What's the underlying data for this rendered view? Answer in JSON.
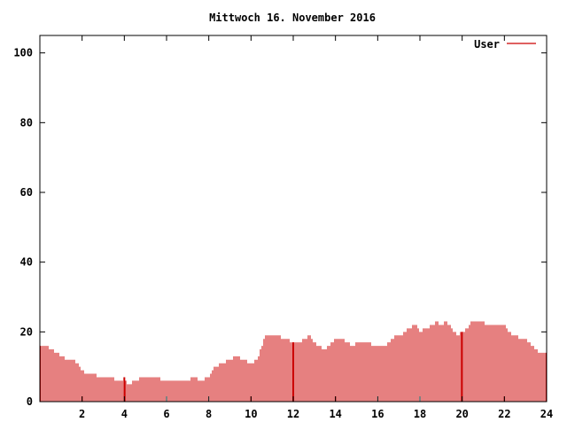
{
  "chart_data": {
    "type": "bar",
    "title": "Mittwoch 16. November 2016",
    "xlabel": "",
    "ylabel": "",
    "xlim": [
      0,
      24
    ],
    "ylim": [
      0,
      105
    ],
    "x_ticks": [
      2,
      4,
      6,
      8,
      10,
      12,
      14,
      16,
      18,
      20,
      22,
      24
    ],
    "y_ticks": [
      0,
      20,
      40,
      60,
      80,
      100
    ],
    "x_tick_labels": [
      "2",
      "4",
      "6",
      "8",
      "10",
      "12",
      "14",
      "16",
      "18",
      "20",
      "22",
      "24"
    ],
    "y_tick_labels": [
      "0",
      "20",
      "40",
      "60",
      "80",
      "100"
    ],
    "grid": false,
    "legend_position": "top-right",
    "series": [
      {
        "name": "User",
        "color": "#cc0000",
        "anchors": [
          [
            0.0,
            16
          ],
          [
            0.3,
            16
          ],
          [
            0.5,
            15
          ],
          [
            0.8,
            14
          ],
          [
            1.0,
            13
          ],
          [
            1.3,
            12
          ],
          [
            1.6,
            12
          ],
          [
            1.8,
            11
          ],
          [
            2.0,
            9
          ],
          [
            2.2,
            8
          ],
          [
            2.5,
            8
          ],
          [
            2.8,
            7
          ],
          [
            3.2,
            7
          ],
          [
            3.5,
            7
          ],
          [
            3.6,
            6
          ],
          [
            3.9,
            6
          ],
          [
            4.0,
            7
          ],
          [
            4.2,
            5
          ],
          [
            4.6,
            6
          ],
          [
            4.8,
            7
          ],
          [
            5.2,
            7
          ],
          [
            5.6,
            7
          ],
          [
            5.8,
            6
          ],
          [
            6.0,
            6
          ],
          [
            6.5,
            6
          ],
          [
            7.0,
            6
          ],
          [
            7.3,
            7
          ],
          [
            7.6,
            6
          ],
          [
            8.0,
            7
          ],
          [
            8.3,
            10
          ],
          [
            8.6,
            11
          ],
          [
            9.0,
            12
          ],
          [
            9.3,
            13
          ],
          [
            9.6,
            12
          ],
          [
            10.0,
            11
          ],
          [
            10.3,
            12
          ],
          [
            10.5,
            16
          ],
          [
            10.7,
            19
          ],
          [
            11.0,
            19
          ],
          [
            11.3,
            19
          ],
          [
            11.6,
            18
          ],
          [
            12.0,
            17
          ],
          [
            12.3,
            17
          ],
          [
            12.6,
            18
          ],
          [
            12.8,
            19
          ],
          [
            13.0,
            17
          ],
          [
            13.2,
            16
          ],
          [
            13.5,
            15
          ],
          [
            13.8,
            17
          ],
          [
            14.0,
            18
          ],
          [
            14.3,
            18
          ],
          [
            14.6,
            17
          ],
          [
            14.8,
            16
          ],
          [
            15.0,
            17
          ],
          [
            15.3,
            17
          ],
          [
            15.6,
            17
          ],
          [
            15.8,
            16
          ],
          [
            16.0,
            16
          ],
          [
            16.3,
            16
          ],
          [
            16.6,
            17
          ],
          [
            16.8,
            19
          ],
          [
            17.1,
            19
          ],
          [
            17.3,
            20
          ],
          [
            17.5,
            21
          ],
          [
            17.8,
            22
          ],
          [
            18.0,
            20
          ],
          [
            18.3,
            21
          ],
          [
            18.6,
            22
          ],
          [
            18.8,
            23
          ],
          [
            19.0,
            22
          ],
          [
            19.2,
            23
          ],
          [
            19.4,
            22
          ],
          [
            19.6,
            20
          ],
          [
            19.8,
            19
          ],
          [
            20.0,
            20
          ],
          [
            20.2,
            21
          ],
          [
            20.5,
            23
          ],
          [
            20.8,
            23
          ],
          [
            21.0,
            23
          ],
          [
            21.2,
            22
          ],
          [
            21.5,
            22
          ],
          [
            21.8,
            22
          ],
          [
            22.0,
            22
          ],
          [
            22.2,
            20
          ],
          [
            22.5,
            19
          ],
          [
            22.8,
            18
          ],
          [
            23.0,
            18
          ],
          [
            23.3,
            16
          ],
          [
            23.5,
            15
          ],
          [
            23.7,
            14
          ],
          [
            24.0,
            14
          ]
        ]
      }
    ]
  }
}
